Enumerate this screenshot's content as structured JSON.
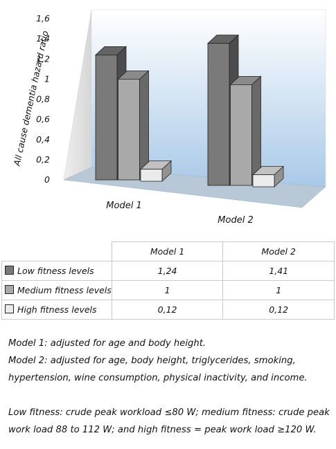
{
  "chart_data": {
    "type": "bar",
    "title": "",
    "xlabel": "",
    "ylabel": "All cause dementia hazard ratio",
    "ylim": [
      0,
      1.6
    ],
    "yticks": [
      "0",
      "0,2",
      "0,4",
      "0,6",
      "0,8",
      "1",
      "1,2",
      "1,4",
      "1,6"
    ],
    "categories": [
      "Model 1",
      "Model 2"
    ],
    "series": [
      {
        "name": "Low fitness levels",
        "values": [
          1.24,
          1.41
        ],
        "color": "#7a7a7a"
      },
      {
        "name": "Medium fitness levels",
        "values": [
          1.0,
          1.0
        ],
        "color": "#a9a9a9"
      },
      {
        "name": "High fitness levels",
        "values": [
          0.12,
          0.12
        ],
        "color": "#ebebeb"
      }
    ],
    "grid": false,
    "style": "3d-column"
  },
  "table": {
    "columns": [
      "Model 1",
      "Model 2"
    ],
    "rows": [
      {
        "label": "Low fitness levels",
        "color": "#7a7a7a",
        "values": [
          "1,24",
          "1,41"
        ]
      },
      {
        "label": "Medium fitness levels",
        "color": "#a9a9a9",
        "values": [
          "1",
          "1"
        ]
      },
      {
        "label": "High fitness levels",
        "color": "#ebebeb",
        "values": [
          "0,12",
          "0,12"
        ]
      }
    ]
  },
  "notes": {
    "model1": "Model 1: adjusted for age and body height.",
    "model2_line1": "Model 2: adjusted for age, body height, triglycerides, smoking,",
    "model2_line2": "hypertension, wine consumption, physical inactivity, and income.",
    "fitness_line1": "Low fitness: crude peak workload ≤80 W; medium fitness: crude peak",
    "fitness_line2": "work load 88 to 112 W; and high fitness = peak work load ≥120 W."
  }
}
